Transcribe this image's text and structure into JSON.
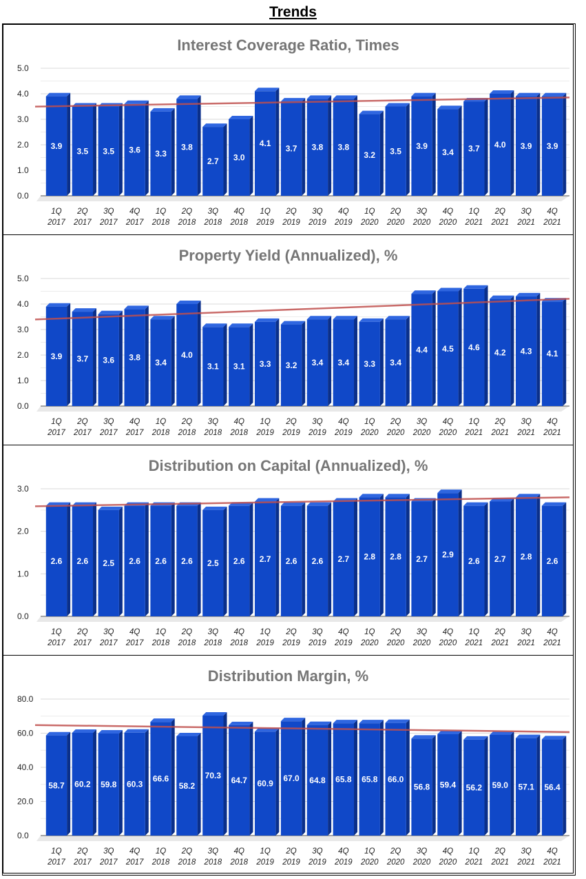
{
  "page": {
    "title": "Trends"
  },
  "categories": [
    [
      "1Q",
      "2017"
    ],
    [
      "2Q",
      "2017"
    ],
    [
      "3Q",
      "2017"
    ],
    [
      "4Q",
      "2017"
    ],
    [
      "1Q",
      "2018"
    ],
    [
      "2Q",
      "2018"
    ],
    [
      "3Q",
      "2018"
    ],
    [
      "4Q",
      "2018"
    ],
    [
      "1Q",
      "2019"
    ],
    [
      "2Q",
      "2019"
    ],
    [
      "3Q",
      "2019"
    ],
    [
      "4Q",
      "2019"
    ],
    [
      "1Q",
      "2020"
    ],
    [
      "2Q",
      "2020"
    ],
    [
      "3Q",
      "2020"
    ],
    [
      "4Q",
      "2020"
    ],
    [
      "1Q",
      "2021"
    ],
    [
      "2Q",
      "2021"
    ],
    [
      "3Q",
      "2021"
    ],
    [
      "4Q",
      "2021"
    ]
  ],
  "colors": {
    "bar": "#1048c8",
    "bar_top": "#2f66e0",
    "bar_side": "#0a2f8a",
    "trend": "#c0504d",
    "grid": "#d9d9d9"
  },
  "chart_data": [
    {
      "type": "bar",
      "title": "Interest Coverage Ratio, Times",
      "ylim": [
        0,
        5
      ],
      "yticks": [
        "0.0",
        "1.0",
        "2.0",
        "3.0",
        "4.0",
        "5.0"
      ],
      "values": [
        3.9,
        3.5,
        3.5,
        3.6,
        3.3,
        3.8,
        2.7,
        3.0,
        4.1,
        3.7,
        3.8,
        3.8,
        3.2,
        3.5,
        3.9,
        3.4,
        3.7,
        4.0,
        3.9,
        3.9
      ],
      "labels": [
        "3.9",
        "3.5",
        "3.5",
        "3.6",
        "3.3",
        "3.8",
        "2.7",
        "3.0",
        "4.1",
        "3.7",
        "3.8",
        "3.8",
        "3.2",
        "3.5",
        "3.9",
        "3.4",
        "3.7",
        "4.0",
        "3.9",
        "3.9"
      ],
      "trendline": true
    },
    {
      "type": "bar",
      "title": "Property Yield (Annualized), %",
      "ylim": [
        0,
        5
      ],
      "yticks": [
        "0.0",
        "1.0",
        "2.0",
        "3.0",
        "4.0",
        "5.0"
      ],
      "values": [
        3.9,
        3.7,
        3.6,
        3.8,
        3.4,
        4.0,
        3.1,
        3.1,
        3.3,
        3.2,
        3.4,
        3.4,
        3.3,
        3.4,
        4.4,
        4.5,
        4.6,
        4.2,
        4.3,
        4.1
      ],
      "labels": [
        "3.9",
        "3.7",
        "3.6",
        "3.8",
        "3.4",
        "4.0",
        "3.1",
        "3.1",
        "3.3",
        "3.2",
        "3.4",
        "3.4",
        "3.3",
        "3.4",
        "4.4",
        "4.5",
        "4.6",
        "4.2",
        "4.3",
        "4.1"
      ],
      "trendline": true
    },
    {
      "type": "bar",
      "title": "Distribution on Capital (Annualized), %",
      "ylim": [
        0,
        3
      ],
      "yticks": [
        "0.0",
        "1.0",
        "2.0",
        "3.0"
      ],
      "values": [
        2.6,
        2.6,
        2.5,
        2.6,
        2.6,
        2.6,
        2.5,
        2.6,
        2.7,
        2.6,
        2.6,
        2.7,
        2.8,
        2.8,
        2.7,
        2.9,
        2.6,
        2.7,
        2.8,
        2.6
      ],
      "labels": [
        "2.6",
        "2.6",
        "2.5",
        "2.6",
        "2.6",
        "2.6",
        "2.5",
        "2.6",
        "2.7",
        "2.6",
        "2.6",
        "2.7",
        "2.8",
        "2.8",
        "2.7",
        "2.9",
        "2.6",
        "2.7",
        "2.8",
        "2.6"
      ],
      "trendline": true
    },
    {
      "type": "bar",
      "title": "Distribution Margin, %",
      "ylim": [
        0,
        80
      ],
      "yticks": [
        "0.0",
        "20.0",
        "40.0",
        "60.0",
        "80.0"
      ],
      "values": [
        58.7,
        60.2,
        59.8,
        60.3,
        66.6,
        58.2,
        70.3,
        64.7,
        60.9,
        67.0,
        64.8,
        65.8,
        65.8,
        66.0,
        56.8,
        59.4,
        56.2,
        59.0,
        57.1,
        56.4
      ],
      "labels": [
        "58.7",
        "60.2",
        "59.8",
        "60.3",
        "66.6",
        "58.2",
        "70.3",
        "64.7",
        "60.9",
        "67.0",
        "64.8",
        "65.8",
        "65.8",
        "66.0",
        "56.8",
        "59.4",
        "56.2",
        "59.0",
        "57.1",
        "56.4"
      ],
      "trendline": true
    }
  ]
}
